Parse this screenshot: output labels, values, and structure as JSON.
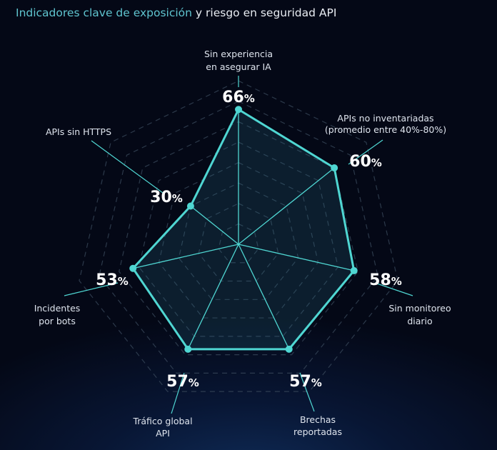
{
  "title": {
    "highlight": "Indicadores clave de exposición",
    "rest": " y riesgo en seguridad API"
  },
  "colors": {
    "accent": "#4fd6d2",
    "title_highlight": "#5fc4cf",
    "background": "#040816"
  },
  "chart_data": {
    "type": "radar",
    "title": "Indicadores clave de exposición y riesgo en seguridad API",
    "unit": "%",
    "axes": [
      {
        "label": [
          "Sin experiencia",
          "en asegurar IA"
        ],
        "value": 66
      },
      {
        "label": [
          "APIs no inventariadas",
          "(promedio entre 40%-80%)"
        ],
        "value": 60
      },
      {
        "label": [
          "Sin monitoreo",
          "diario"
        ],
        "value": 58
      },
      {
        "label": [
          "Brechas",
          "reportadas"
        ],
        "value": 57
      },
      {
        "label": [
          "Tráfico global",
          "API"
        ],
        "value": 57
      },
      {
        "label": [
          "Incidentes",
          "por bots"
        ],
        "value": 53
      },
      {
        "label": [
          "APIs sin HTTPS"
        ],
        "value": 30
      }
    ],
    "grid": true,
    "grid_style": "dashed"
  }
}
